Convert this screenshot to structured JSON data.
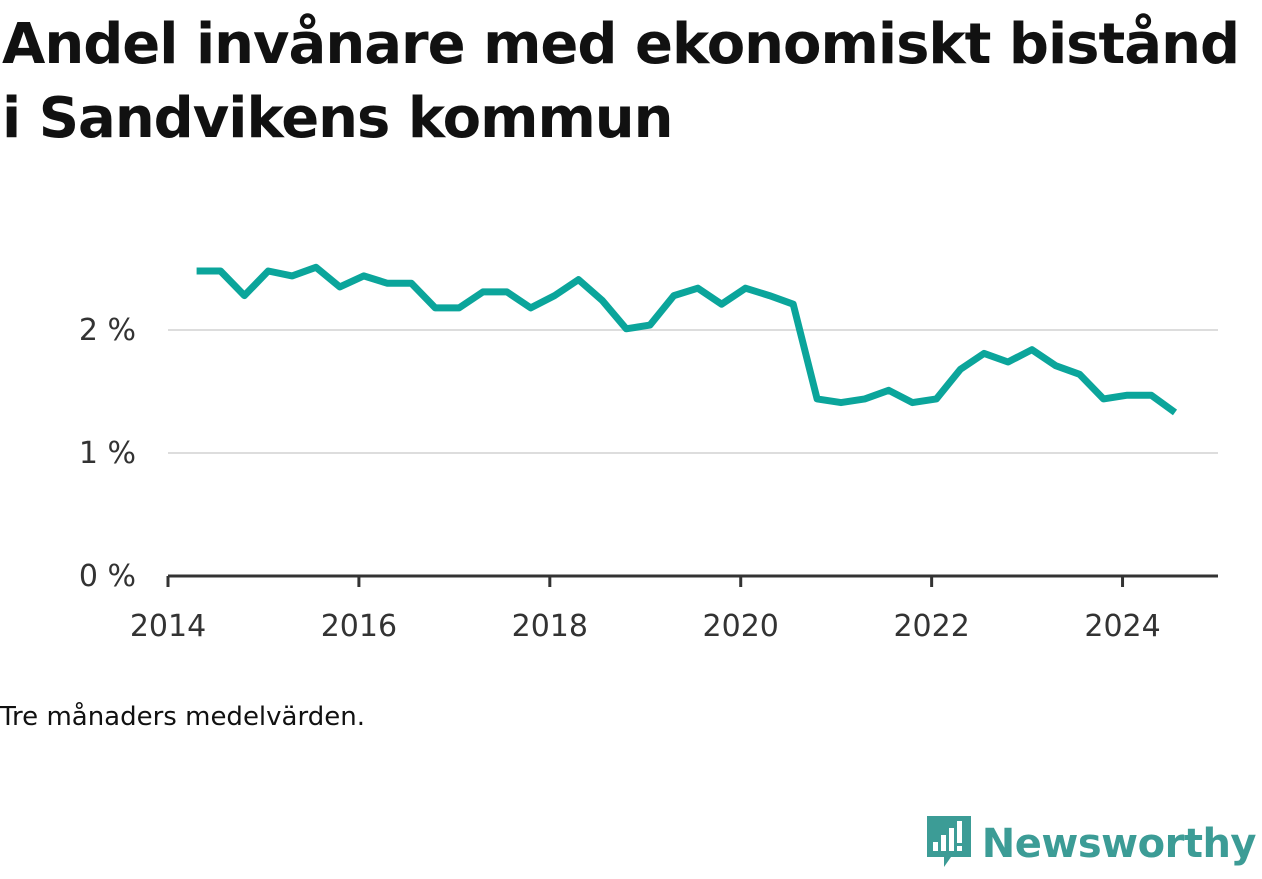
{
  "title": "Andel invånare med ekonomiskt bistånd i Sandvikens kommun",
  "note": "Tre månaders medelvärden.",
  "brand": {
    "name": "Newsworthy",
    "logo_icon": "bar-chart-speech-bubble-icon",
    "color": "#3c9c96"
  },
  "chart_data": {
    "type": "line",
    "title": "Andel invånare med ekonomiskt bistånd i Sandvikens kommun",
    "xlabel": "",
    "ylabel": "",
    "color": "#0ba59b",
    "grid": true,
    "xlim": [
      2014.0,
      2025.0
    ],
    "ylim": [
      0,
      2.6
    ],
    "x_ticks": [
      {
        "value": 2014,
        "label": "2014"
      },
      {
        "value": 2016,
        "label": "2016"
      },
      {
        "value": 2018,
        "label": "2018"
      },
      {
        "value": 2020,
        "label": "2020"
      },
      {
        "value": 2022,
        "label": "2022"
      },
      {
        "value": 2024,
        "label": "2024"
      }
    ],
    "y_ticks": [
      {
        "value": 0,
        "label": "0 %"
      },
      {
        "value": 1,
        "label": "1 %"
      },
      {
        "value": 2,
        "label": "2 %"
      }
    ],
    "series": [
      {
        "x": [
          2014.3,
          2014.55,
          2014.8,
          2015.05,
          2015.3,
          2015.55,
          2015.8,
          2016.05,
          2016.3,
          2016.55,
          2016.8,
          2017.05,
          2017.3,
          2017.55,
          2017.8,
          2018.05,
          2018.3,
          2018.55,
          2018.8,
          2019.05,
          2019.3,
          2019.55,
          2019.8,
          2020.05,
          2020.3,
          2020.55,
          2020.8,
          2021.05,
          2021.3,
          2021.55,
          2021.8,
          2022.05,
          2022.3,
          2022.55,
          2022.8,
          2023.05,
          2023.3,
          2023.55,
          2023.8,
          2024.05,
          2024.3,
          2024.55
        ],
        "y": [
          2.48,
          2.48,
          2.28,
          2.48,
          2.44,
          2.51,
          2.35,
          2.44,
          2.38,
          2.38,
          2.18,
          2.18,
          2.31,
          2.31,
          2.18,
          2.28,
          2.41,
          2.24,
          2.01,
          2.04,
          2.28,
          2.34,
          2.21,
          2.34,
          2.28,
          2.21,
          1.44,
          1.41,
          1.44,
          1.51,
          1.41,
          1.44,
          1.68,
          1.81,
          1.74,
          1.84,
          1.71,
          1.64,
          1.44,
          1.47,
          1.47,
          1.33
        ]
      }
    ]
  }
}
